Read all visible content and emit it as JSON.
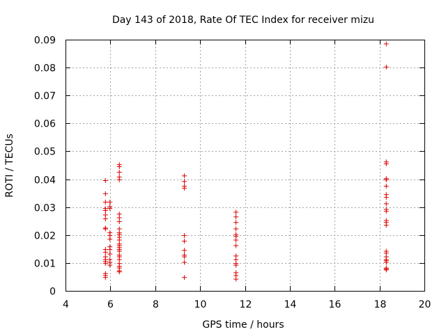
{
  "chart_data": {
    "type": "scatter",
    "title": "Day 143 of 2018, Rate Of TEC Index for receiver mizu",
    "xlabel": "GPS time / hours",
    "ylabel": "ROTI / TECUs",
    "xlim": [
      4,
      20
    ],
    "ylim": [
      0,
      0.09
    ],
    "xticks": [
      4,
      6,
      8,
      10,
      12,
      14,
      16,
      18,
      20
    ],
    "yticks": [
      0,
      0.01,
      0.02,
      0.03,
      0.04,
      0.05,
      0.06,
      0.07,
      0.08,
      0.09
    ],
    "xtick_labels": [
      "4",
      "6",
      "8",
      "10",
      "12",
      "14",
      "16",
      "18",
      "20"
    ],
    "ytick_labels": [
      "0",
      "0.01",
      "0.02",
      "0.03",
      "0.04",
      "0.05",
      "0.06",
      "0.07",
      "0.08",
      "0.09"
    ],
    "grid": true,
    "marker": "+",
    "color": "#dd0000",
    "series": [
      {
        "name": "ROTI",
        "x": [
          5.78,
          5.78,
          5.78,
          5.78,
          5.78,
          5.78,
          5.78,
          5.78,
          5.78,
          5.78,
          5.78,
          5.78,
          5.78,
          5.78,
          5.78,
          5.78,
          5.78,
          5.78,
          5.98,
          5.98,
          5.98,
          5.98,
          5.98,
          5.98,
          5.98,
          5.98,
          5.98,
          5.98,
          5.98,
          5.98,
          6.4,
          6.4,
          6.4,
          6.4,
          6.4,
          6.4,
          6.4,
          6.4,
          6.4,
          6.4,
          6.4,
          6.4,
          6.4,
          6.4,
          6.4,
          6.4,
          6.4,
          6.4,
          6.4,
          6.4,
          6.4,
          6.4,
          6.4,
          6.4,
          6.4,
          6.4,
          9.3,
          9.3,
          9.3,
          9.3,
          9.3,
          9.3,
          9.3,
          9.3,
          9.3,
          9.3,
          9.3,
          11.6,
          11.6,
          11.6,
          11.6,
          11.6,
          11.6,
          11.6,
          11.6,
          11.6,
          11.6,
          11.6,
          11.6,
          11.6,
          11.6,
          11.6,
          18.3,
          18.3,
          18.3,
          18.3,
          18.3,
          18.3,
          18.3,
          18.3,
          18.3,
          18.3,
          18.3,
          18.3,
          18.3,
          18.3,
          18.3,
          18.3,
          18.3,
          18.3,
          18.3,
          18.3,
          18.3,
          18.3,
          18.3,
          18.3
        ],
        "y": [
          0.0395,
          0.0348,
          0.0318,
          0.0295,
          0.0288,
          0.0272,
          0.0258,
          0.0225,
          0.0222,
          0.0148,
          0.0138,
          0.0122,
          0.0112,
          0.0105,
          0.0098,
          0.0062,
          0.0055,
          0.0048,
          0.0318,
          0.0302,
          0.0295,
          0.0208,
          0.0198,
          0.0185,
          0.0158,
          0.0148,
          0.0132,
          0.0112,
          0.0102,
          0.0092,
          0.0452,
          0.0445,
          0.0425,
          0.0408,
          0.0398,
          0.0275,
          0.0262,
          0.0248,
          0.0222,
          0.0208,
          0.0202,
          0.0192,
          0.0182,
          0.0168,
          0.0162,
          0.0155,
          0.0148,
          0.0142,
          0.0128,
          0.0122,
          0.0112,
          0.0098,
          0.0088,
          0.0082,
          0.0072,
          0.0068,
          0.0412,
          0.0392,
          0.0375,
          0.0368,
          0.0198,
          0.0178,
          0.0145,
          0.0128,
          0.0122,
          0.0102,
          0.0048,
          0.0282,
          0.0265,
          0.0245,
          0.0222,
          0.0202,
          0.0195,
          0.0182,
          0.0162,
          0.0125,
          0.0112,
          0.0098,
          0.0092,
          0.0065,
          0.0055,
          0.0042,
          0.0885,
          0.0802,
          0.0462,
          0.0455,
          0.0402,
          0.0398,
          0.0375,
          0.0345,
          0.0335,
          0.0312,
          0.0292,
          0.0285,
          0.0252,
          0.0245,
          0.0235,
          0.0142,
          0.0135,
          0.0122,
          0.0112,
          0.0108,
          0.0102,
          0.0082,
          0.0078,
          0.0075
        ]
      }
    ]
  }
}
